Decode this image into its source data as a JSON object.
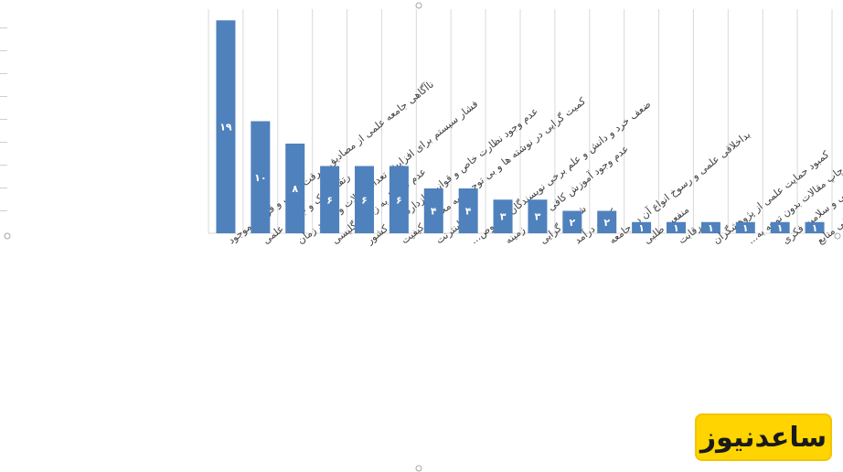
{
  "chart_data": {
    "type": "bar",
    "categories": [
      "ناآگاهی جامعه علمی از مصادیق سرقت علمی و قوانین موجود",
      "رتقا مدرک و جایگاه علمی",
      "فشار سیستم برای افزایش تعداد مقالات و کمبود زمان",
      "عدم تسلط به زبان انگلیسی",
      "عدم وجود نظارت خاص و قوانین بازدارنده در کشور",
      "کمیت گرایی در نوشته ها و بی توجهی به محتوا و کیفیت",
      "اینترنت",
      "ضعف خرد و دانش و علم برخی نویسندگان بخصوص...",
      "عدم وجود آموزش کافی در این زمینه",
      "شهرت گرایی",
      "کسب درآمد",
      "بداخلاقی علمی و رسوخ انواع آن در جامعه",
      "منفعت طلبی",
      "رقابت",
      "کمبود حمایت علمی از پژوهشگران",
      "نشر الکترونیک که منجر به چاپ مقالات بدون توجه به...",
      "ضعف دینی و سلامت فکری",
      "عدم علاقه به جستجوی کافی منابع"
    ],
    "values": [
      19,
      10,
      8,
      6,
      6,
      6,
      4,
      4,
      3,
      3,
      2,
      2,
      1,
      1,
      1,
      1,
      1,
      1
    ],
    "value_labels": [
      "۱۹",
      "۱۰",
      "۸",
      "۶",
      "۶",
      "۶",
      "۴",
      "۴",
      "۳",
      "۳",
      "۲",
      "۲",
      "۱",
      "۱",
      "۱",
      "۱",
      "۱",
      "۱"
    ],
    "ylim": [
      0,
      20
    ],
    "grid": "vertical category separators",
    "bar_color": "#4f81bd",
    "label_color": "#ffffff"
  },
  "watermark": {
    "text": "ساعدنیوز",
    "bg": "#ffd400"
  }
}
